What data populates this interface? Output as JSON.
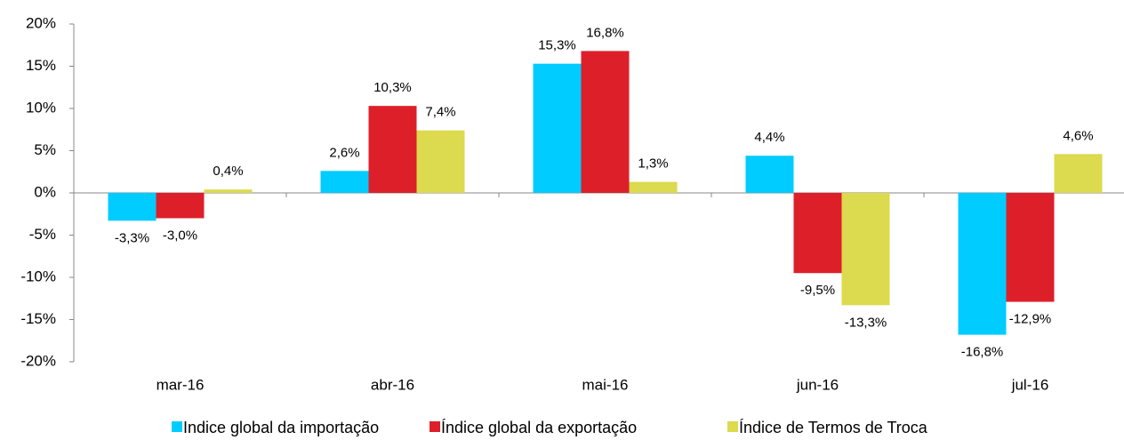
{
  "chart_data": {
    "type": "bar",
    "categories": [
      "mar-16",
      "abr-16",
      "mai-16",
      "jun-16",
      "jul-16"
    ],
    "series": [
      {
        "name": "Indice global da importação",
        "color": "#00ccff",
        "values": [
          -3.3,
          2.6,
          15.3,
          4.4,
          -16.8
        ],
        "value_labels": [
          "-3,3%",
          "2,6%",
          "15,3%",
          "4,4%",
          "-16,8%"
        ]
      },
      {
        "name": "Índice global da exportação",
        "color": "#dd1f2a",
        "values": [
          -3.0,
          10.3,
          16.8,
          -9.5,
          -12.9
        ],
        "value_labels": [
          "-3,0%",
          "10,3%",
          "16,8%",
          "-9,5%",
          "-12,9%"
        ]
      },
      {
        "name": "Índice de Termos de Troca",
        "color": "#dcda4e",
        "values": [
          0.4,
          7.4,
          1.3,
          -13.3,
          4.6
        ],
        "value_labels": [
          "0,4%",
          "7,4%",
          "1,3%",
          "-13,3%",
          "4,6%"
        ]
      }
    ],
    "ylim": [
      -20,
      20
    ],
    "yticks": [
      {
        "value": -20,
        "label": "-20%"
      },
      {
        "value": -15,
        "label": "-15%"
      },
      {
        "value": -10,
        "label": "-10%"
      },
      {
        "value": -5,
        "label": "-5%"
      },
      {
        "value": 0,
        "label": "0%"
      },
      {
        "value": 5,
        "label": "5%"
      },
      {
        "value": 10,
        "label": "10%"
      },
      {
        "value": 15,
        "label": "15%"
      },
      {
        "value": 20,
        "label": "20%"
      }
    ],
    "legend": "bottom"
  }
}
